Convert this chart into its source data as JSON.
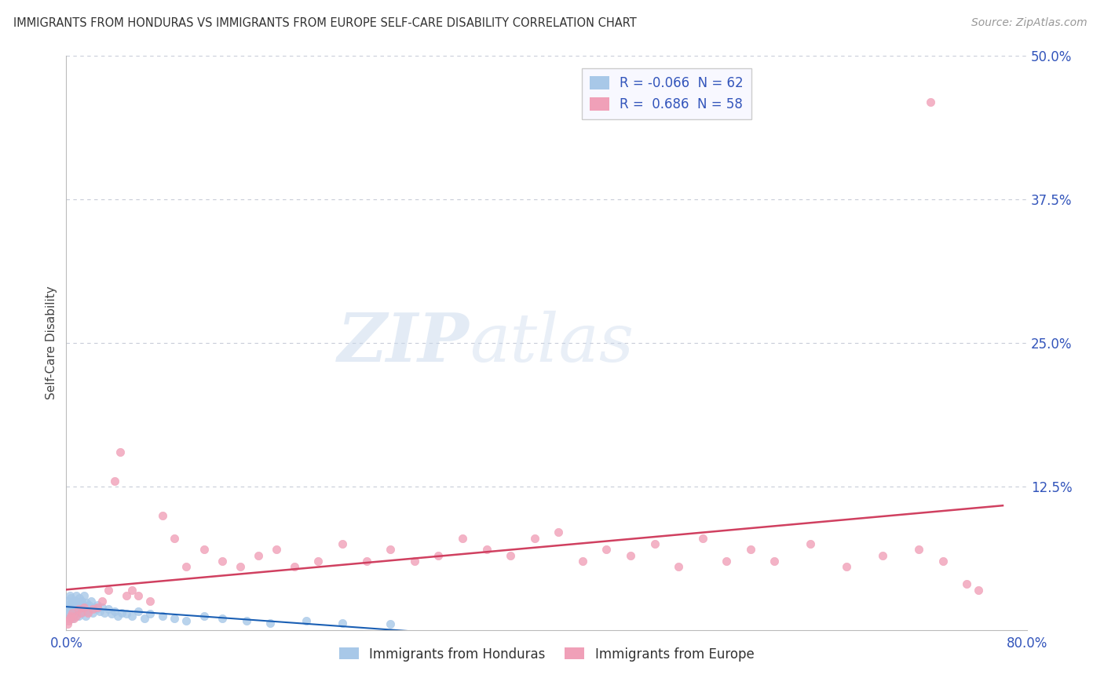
{
  "title": "IMMIGRANTS FROM HONDURAS VS IMMIGRANTS FROM EUROPE SELF-CARE DISABILITY CORRELATION CHART",
  "source": "Source: ZipAtlas.com",
  "ylabel": "Self-Care Disability",
  "r_honduras": -0.066,
  "n_honduras": 62,
  "r_europe": 0.686,
  "n_europe": 58,
  "xlim": [
    0.0,
    0.8
  ],
  "ylim": [
    0.0,
    0.5
  ],
  "xtick_positions": [
    0.0,
    0.8
  ],
  "xticklabels": [
    "0.0%",
    "80.0%"
  ],
  "yticks_right": [
    0.0,
    0.125,
    0.25,
    0.375,
    0.5
  ],
  "yticklabels_right": [
    "",
    "12.5%",
    "25.0%",
    "37.5%",
    "50.0%"
  ],
  "color_honduras": "#a8c8e8",
  "color_europe": "#f0a0b8",
  "line_color_honduras": "#1a5fb4",
  "line_color_europe": "#d04060",
  "background_color": "#ffffff",
  "grid_color": "#c8ccd8",
  "honduras_x": [
    0.001,
    0.001,
    0.002,
    0.002,
    0.003,
    0.003,
    0.004,
    0.004,
    0.005,
    0.005,
    0.005,
    0.006,
    0.006,
    0.007,
    0.007,
    0.008,
    0.008,
    0.009,
    0.009,
    0.01,
    0.01,
    0.011,
    0.011,
    0.012,
    0.013,
    0.013,
    0.014,
    0.015,
    0.015,
    0.016,
    0.017,
    0.018,
    0.019,
    0.02,
    0.021,
    0.022,
    0.023,
    0.025,
    0.026,
    0.028,
    0.03,
    0.032,
    0.035,
    0.038,
    0.04,
    0.043,
    0.046,
    0.05,
    0.055,
    0.06,
    0.065,
    0.07,
    0.08,
    0.09,
    0.1,
    0.115,
    0.13,
    0.15,
    0.17,
    0.2,
    0.23,
    0.27
  ],
  "honduras_y": [
    0.018,
    0.022,
    0.015,
    0.025,
    0.02,
    0.03,
    0.012,
    0.028,
    0.016,
    0.024,
    0.01,
    0.022,
    0.018,
    0.026,
    0.014,
    0.02,
    0.03,
    0.016,
    0.022,
    0.024,
    0.012,
    0.018,
    0.028,
    0.02,
    0.015,
    0.025,
    0.022,
    0.018,
    0.03,
    0.012,
    0.024,
    0.016,
    0.022,
    0.018,
    0.025,
    0.015,
    0.02,
    0.018,
    0.022,
    0.016,
    0.02,
    0.015,
    0.018,
    0.014,
    0.016,
    0.012,
    0.015,
    0.014,
    0.012,
    0.016,
    0.01,
    0.014,
    0.012,
    0.01,
    0.008,
    0.012,
    0.01,
    0.008,
    0.006,
    0.008,
    0.006,
    0.005
  ],
  "europe_x": [
    0.001,
    0.002,
    0.003,
    0.004,
    0.005,
    0.006,
    0.008,
    0.01,
    0.012,
    0.015,
    0.018,
    0.022,
    0.026,
    0.03,
    0.035,
    0.04,
    0.045,
    0.05,
    0.055,
    0.06,
    0.07,
    0.08,
    0.09,
    0.1,
    0.115,
    0.13,
    0.145,
    0.16,
    0.175,
    0.19,
    0.21,
    0.23,
    0.25,
    0.27,
    0.29,
    0.31,
    0.33,
    0.35,
    0.37,
    0.39,
    0.41,
    0.43,
    0.45,
    0.47,
    0.49,
    0.51,
    0.53,
    0.55,
    0.57,
    0.59,
    0.62,
    0.65,
    0.68,
    0.71,
    0.73,
    0.75,
    0.76,
    0.72
  ],
  "europe_y": [
    0.005,
    0.008,
    0.01,
    0.012,
    0.015,
    0.01,
    0.012,
    0.018,
    0.015,
    0.02,
    0.015,
    0.018,
    0.02,
    0.025,
    0.035,
    0.13,
    0.155,
    0.03,
    0.035,
    0.03,
    0.025,
    0.1,
    0.08,
    0.055,
    0.07,
    0.06,
    0.055,
    0.065,
    0.07,
    0.055,
    0.06,
    0.075,
    0.06,
    0.07,
    0.06,
    0.065,
    0.08,
    0.07,
    0.065,
    0.08,
    0.085,
    0.06,
    0.07,
    0.065,
    0.075,
    0.055,
    0.08,
    0.06,
    0.07,
    0.06,
    0.075,
    0.055,
    0.065,
    0.07,
    0.06,
    0.04,
    0.035,
    0.46
  ]
}
